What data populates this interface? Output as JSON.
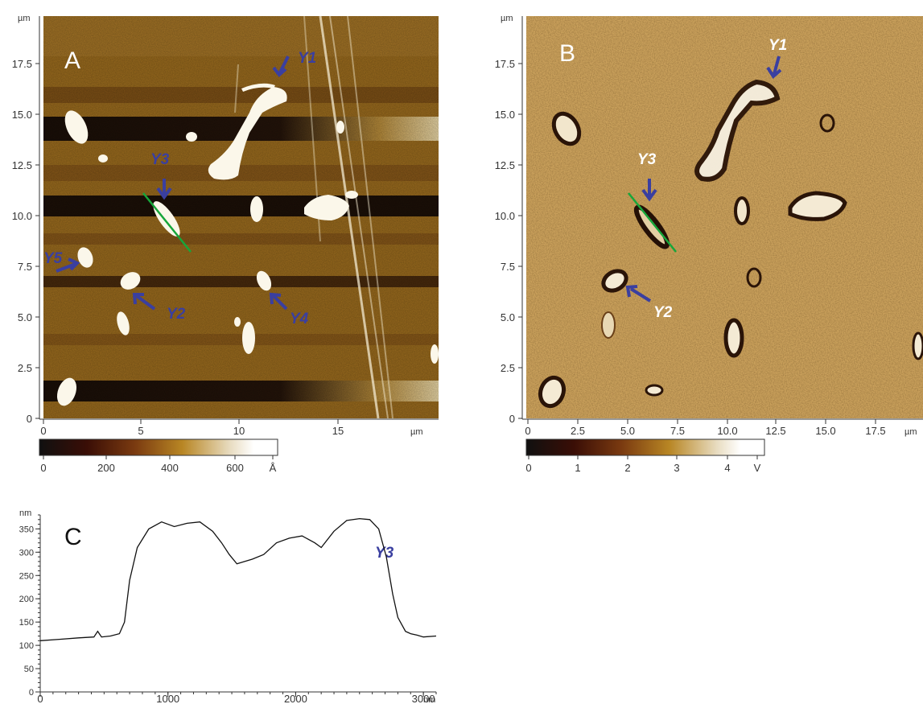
{
  "figure": {
    "panels": {
      "A": {
        "label": "A",
        "axis_unit": "µm",
        "y_ticks": [
          "0",
          "2.5",
          "5.0",
          "7.5",
          "10.0",
          "12.5",
          "15.0",
          "17.5"
        ],
        "x_ticks": [
          "0",
          "5",
          "10",
          "15"
        ],
        "colorbar": {
          "ticks": [
            "0",
            "200",
            "400",
            "600"
          ],
          "unit": "Å"
        },
        "annotations": [
          "Y1",
          "Y2",
          "Y3",
          "Y4",
          "Y5"
        ]
      },
      "B": {
        "label": "B",
        "axis_unit": "µm",
        "y_ticks": [
          "0",
          "2.5",
          "5.0",
          "7.5",
          "10.0",
          "12.5",
          "15.0",
          "17.5"
        ],
        "x_ticks": [
          "0",
          "2.5",
          "5.0",
          "7.5",
          "10.0",
          "12.5",
          "15.0",
          "17.5"
        ],
        "colorbar": {
          "ticks": [
            "0",
            "1",
            "2",
            "3",
            "4"
          ],
          "unit": "V"
        },
        "annotations": [
          "Y1",
          "Y3",
          "Y2"
        ]
      },
      "C": {
        "label": "C",
        "y_unit": "nm",
        "x_unit": "nm",
        "annotation": "Y3"
      }
    },
    "colors": {
      "annotation_blue": "#3a3fa0",
      "profile_line_green": "#17a63a",
      "afm_dark": "#1a0f08",
      "afm_mid": "#9a6b1e",
      "afm_light": "#f4f0e4"
    }
  },
  "chart_data": {
    "type": "line",
    "title": "",
    "xlabel": "nm",
    "ylabel": "nm",
    "xlim": [
      0,
      3100
    ],
    "ylim": [
      0,
      380
    ],
    "x_ticks": [
      0,
      1000,
      2000,
      3000
    ],
    "y_ticks": [
      0,
      50,
      100,
      150,
      200,
      250,
      300,
      350
    ],
    "grid": false,
    "series": [
      {
        "x": [
          0,
          150,
          300,
          420,
          450,
          480,
          550,
          620,
          660,
          700,
          760,
          850,
          950,
          1050,
          1150,
          1250,
          1350,
          1420,
          1480,
          1540,
          1600,
          1660,
          1750,
          1850,
          1950,
          2050,
          2150,
          2200,
          2300,
          2400,
          2500,
          2580,
          2650,
          2710,
          2760,
          2800,
          2860,
          2900,
          2950,
          3000,
          3100,
          3200,
          3400,
          3600
        ],
        "y": [
          110,
          113,
          116,
          118,
          130,
          118,
          120,
          125,
          150,
          240,
          310,
          350,
          365,
          355,
          362,
          365,
          345,
          320,
          295,
          275,
          280,
          285,
          295,
          320,
          330,
          335,
          320,
          310,
          345,
          368,
          372,
          370,
          350,
          290,
          210,
          160,
          130,
          125,
          122,
          118,
          120,
          118,
          115,
          112
        ]
      }
    ]
  }
}
